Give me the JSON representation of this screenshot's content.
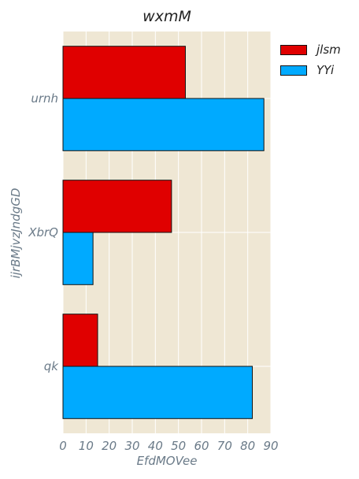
{
  "chart_data": {
    "type": "bar",
    "orientation": "horizontal",
    "title": "wxmM",
    "xlabel": "EfdMOVee",
    "ylabel": "ijrBMjvzJndgGD",
    "categories": [
      "urnh",
      "XbrQ",
      "qk"
    ],
    "series": [
      {
        "name": "jlsm",
        "values": [
          53,
          47,
          15
        ],
        "color": "#e00000"
      },
      {
        "name": "YYi",
        "values": [
          87,
          13,
          82
        ],
        "color": "#00aaff"
      }
    ],
    "xlim": [
      0,
      90
    ],
    "xticks": [
      0,
      10,
      20,
      30,
      40,
      50,
      60,
      70,
      80,
      90
    ],
    "grid": true,
    "legend": "top-right, outside plot",
    "background": "#efe7d4"
  }
}
